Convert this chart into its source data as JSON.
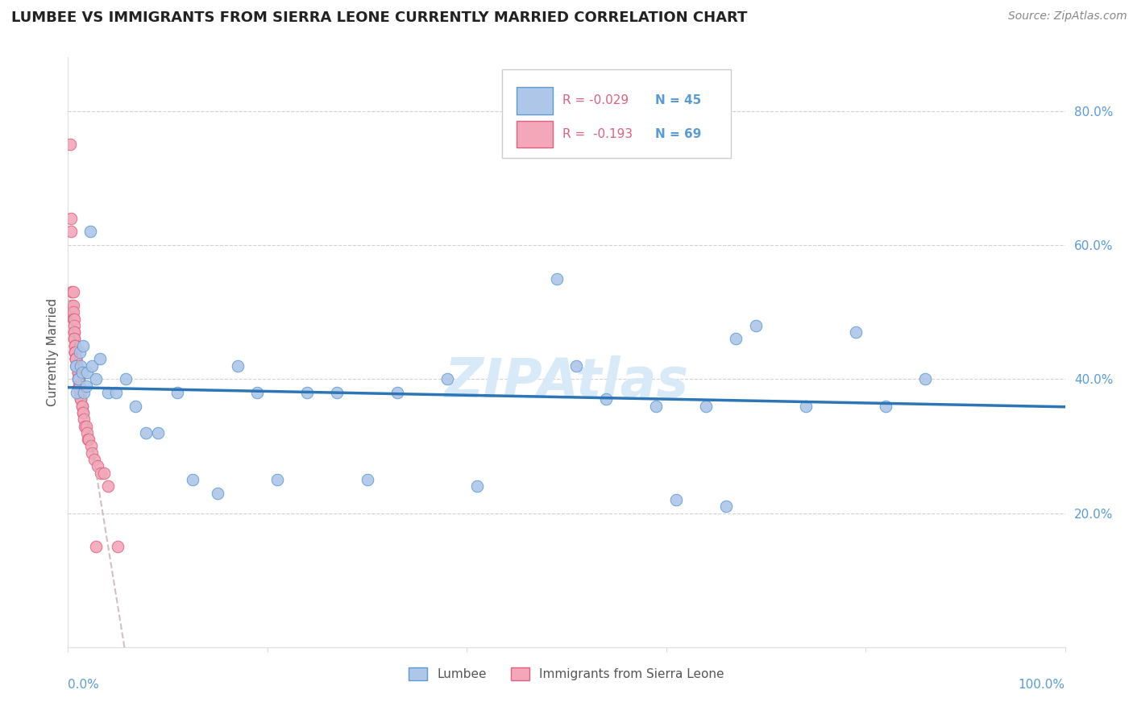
{
  "title": "LUMBEE VS IMMIGRANTS FROM SIERRA LEONE CURRENTLY MARRIED CORRELATION CHART",
  "source": "Source: ZipAtlas.com",
  "ylabel": "Currently Married",
  "watermark": "ZIPAtlas",
  "lumbee": {
    "label": "Lumbee",
    "color": "#aec6e8",
    "edge_color": "#5b9bd5",
    "trend_color": "#2e75b6",
    "R": -0.029,
    "N": 45,
    "points_x": [
      0.008,
      0.009,
      0.01,
      0.012,
      0.013,
      0.014,
      0.015,
      0.016,
      0.018,
      0.019,
      0.022,
      0.024,
      0.028,
      0.032,
      0.04,
      0.048,
      0.058,
      0.068,
      0.078,
      0.09,
      0.11,
      0.125,
      0.15,
      0.17,
      0.19,
      0.21,
      0.24,
      0.27,
      0.3,
      0.33,
      0.38,
      0.41,
      0.49,
      0.51,
      0.54,
      0.59,
      0.61,
      0.64,
      0.66,
      0.67,
      0.69,
      0.74,
      0.79,
      0.82,
      0.86
    ],
    "points_y": [
      0.42,
      0.38,
      0.4,
      0.44,
      0.42,
      0.41,
      0.45,
      0.38,
      0.39,
      0.41,
      0.62,
      0.42,
      0.4,
      0.43,
      0.38,
      0.38,
      0.4,
      0.36,
      0.32,
      0.32,
      0.38,
      0.25,
      0.23,
      0.42,
      0.38,
      0.25,
      0.38,
      0.38,
      0.25,
      0.38,
      0.4,
      0.24,
      0.55,
      0.42,
      0.37,
      0.36,
      0.22,
      0.36,
      0.21,
      0.46,
      0.48,
      0.36,
      0.47,
      0.36,
      0.4
    ]
  },
  "sierra_leone": {
    "label": "Immigrants from Sierra Leone",
    "color": "#f4a7b9",
    "edge_color": "#e06080",
    "trend_color": "#c0504d",
    "R": -0.193,
    "N": 69,
    "points_x": [
      0.002,
      0.003,
      0.003,
      0.004,
      0.004,
      0.004,
      0.005,
      0.005,
      0.005,
      0.005,
      0.006,
      0.006,
      0.006,
      0.006,
      0.006,
      0.006,
      0.007,
      0.007,
      0.007,
      0.007,
      0.007,
      0.007,
      0.007,
      0.008,
      0.008,
      0.008,
      0.008,
      0.008,
      0.009,
      0.009,
      0.009,
      0.009,
      0.009,
      0.009,
      0.01,
      0.01,
      0.01,
      0.01,
      0.01,
      0.011,
      0.011,
      0.011,
      0.011,
      0.012,
      0.012,
      0.012,
      0.012,
      0.013,
      0.013,
      0.013,
      0.014,
      0.014,
      0.015,
      0.015,
      0.016,
      0.017,
      0.018,
      0.019,
      0.02,
      0.021,
      0.023,
      0.024,
      0.026,
      0.028,
      0.03,
      0.033,
      0.036,
      0.04,
      0.05
    ],
    "points_y": [
      0.75,
      0.64,
      0.62,
      0.53,
      0.51,
      0.5,
      0.53,
      0.51,
      0.5,
      0.49,
      0.49,
      0.48,
      0.47,
      0.47,
      0.46,
      0.46,
      0.45,
      0.45,
      0.45,
      0.44,
      0.44,
      0.44,
      0.44,
      0.43,
      0.43,
      0.43,
      0.43,
      0.43,
      0.42,
      0.42,
      0.42,
      0.42,
      0.42,
      0.42,
      0.41,
      0.41,
      0.41,
      0.4,
      0.4,
      0.4,
      0.4,
      0.39,
      0.39,
      0.39,
      0.38,
      0.38,
      0.38,
      0.38,
      0.37,
      0.37,
      0.36,
      0.36,
      0.35,
      0.35,
      0.34,
      0.33,
      0.33,
      0.32,
      0.31,
      0.31,
      0.3,
      0.29,
      0.28,
      0.15,
      0.27,
      0.26,
      0.26,
      0.24,
      0.15
    ]
  },
  "xlim": [
    0.0,
    1.0
  ],
  "ylim": [
    0.0,
    0.88
  ],
  "yticks": [
    0.2,
    0.4,
    0.6,
    0.8
  ],
  "ytick_labels": [
    "20.0%",
    "40.0%",
    "60.0%",
    "80.0%"
  ],
  "xtick_labels": [
    "0.0%",
    "100.0%"
  ],
  "background_color": "#ffffff",
  "grid_color": "#cccccc",
  "title_color": "#222222",
  "title_fontsize": 13,
  "axis_color": "#5b9bd5",
  "ylabel_color": "#555555",
  "source_color": "#888888",
  "watermark_color": "#d8eaf7",
  "legend_edge_color": "#cccccc"
}
